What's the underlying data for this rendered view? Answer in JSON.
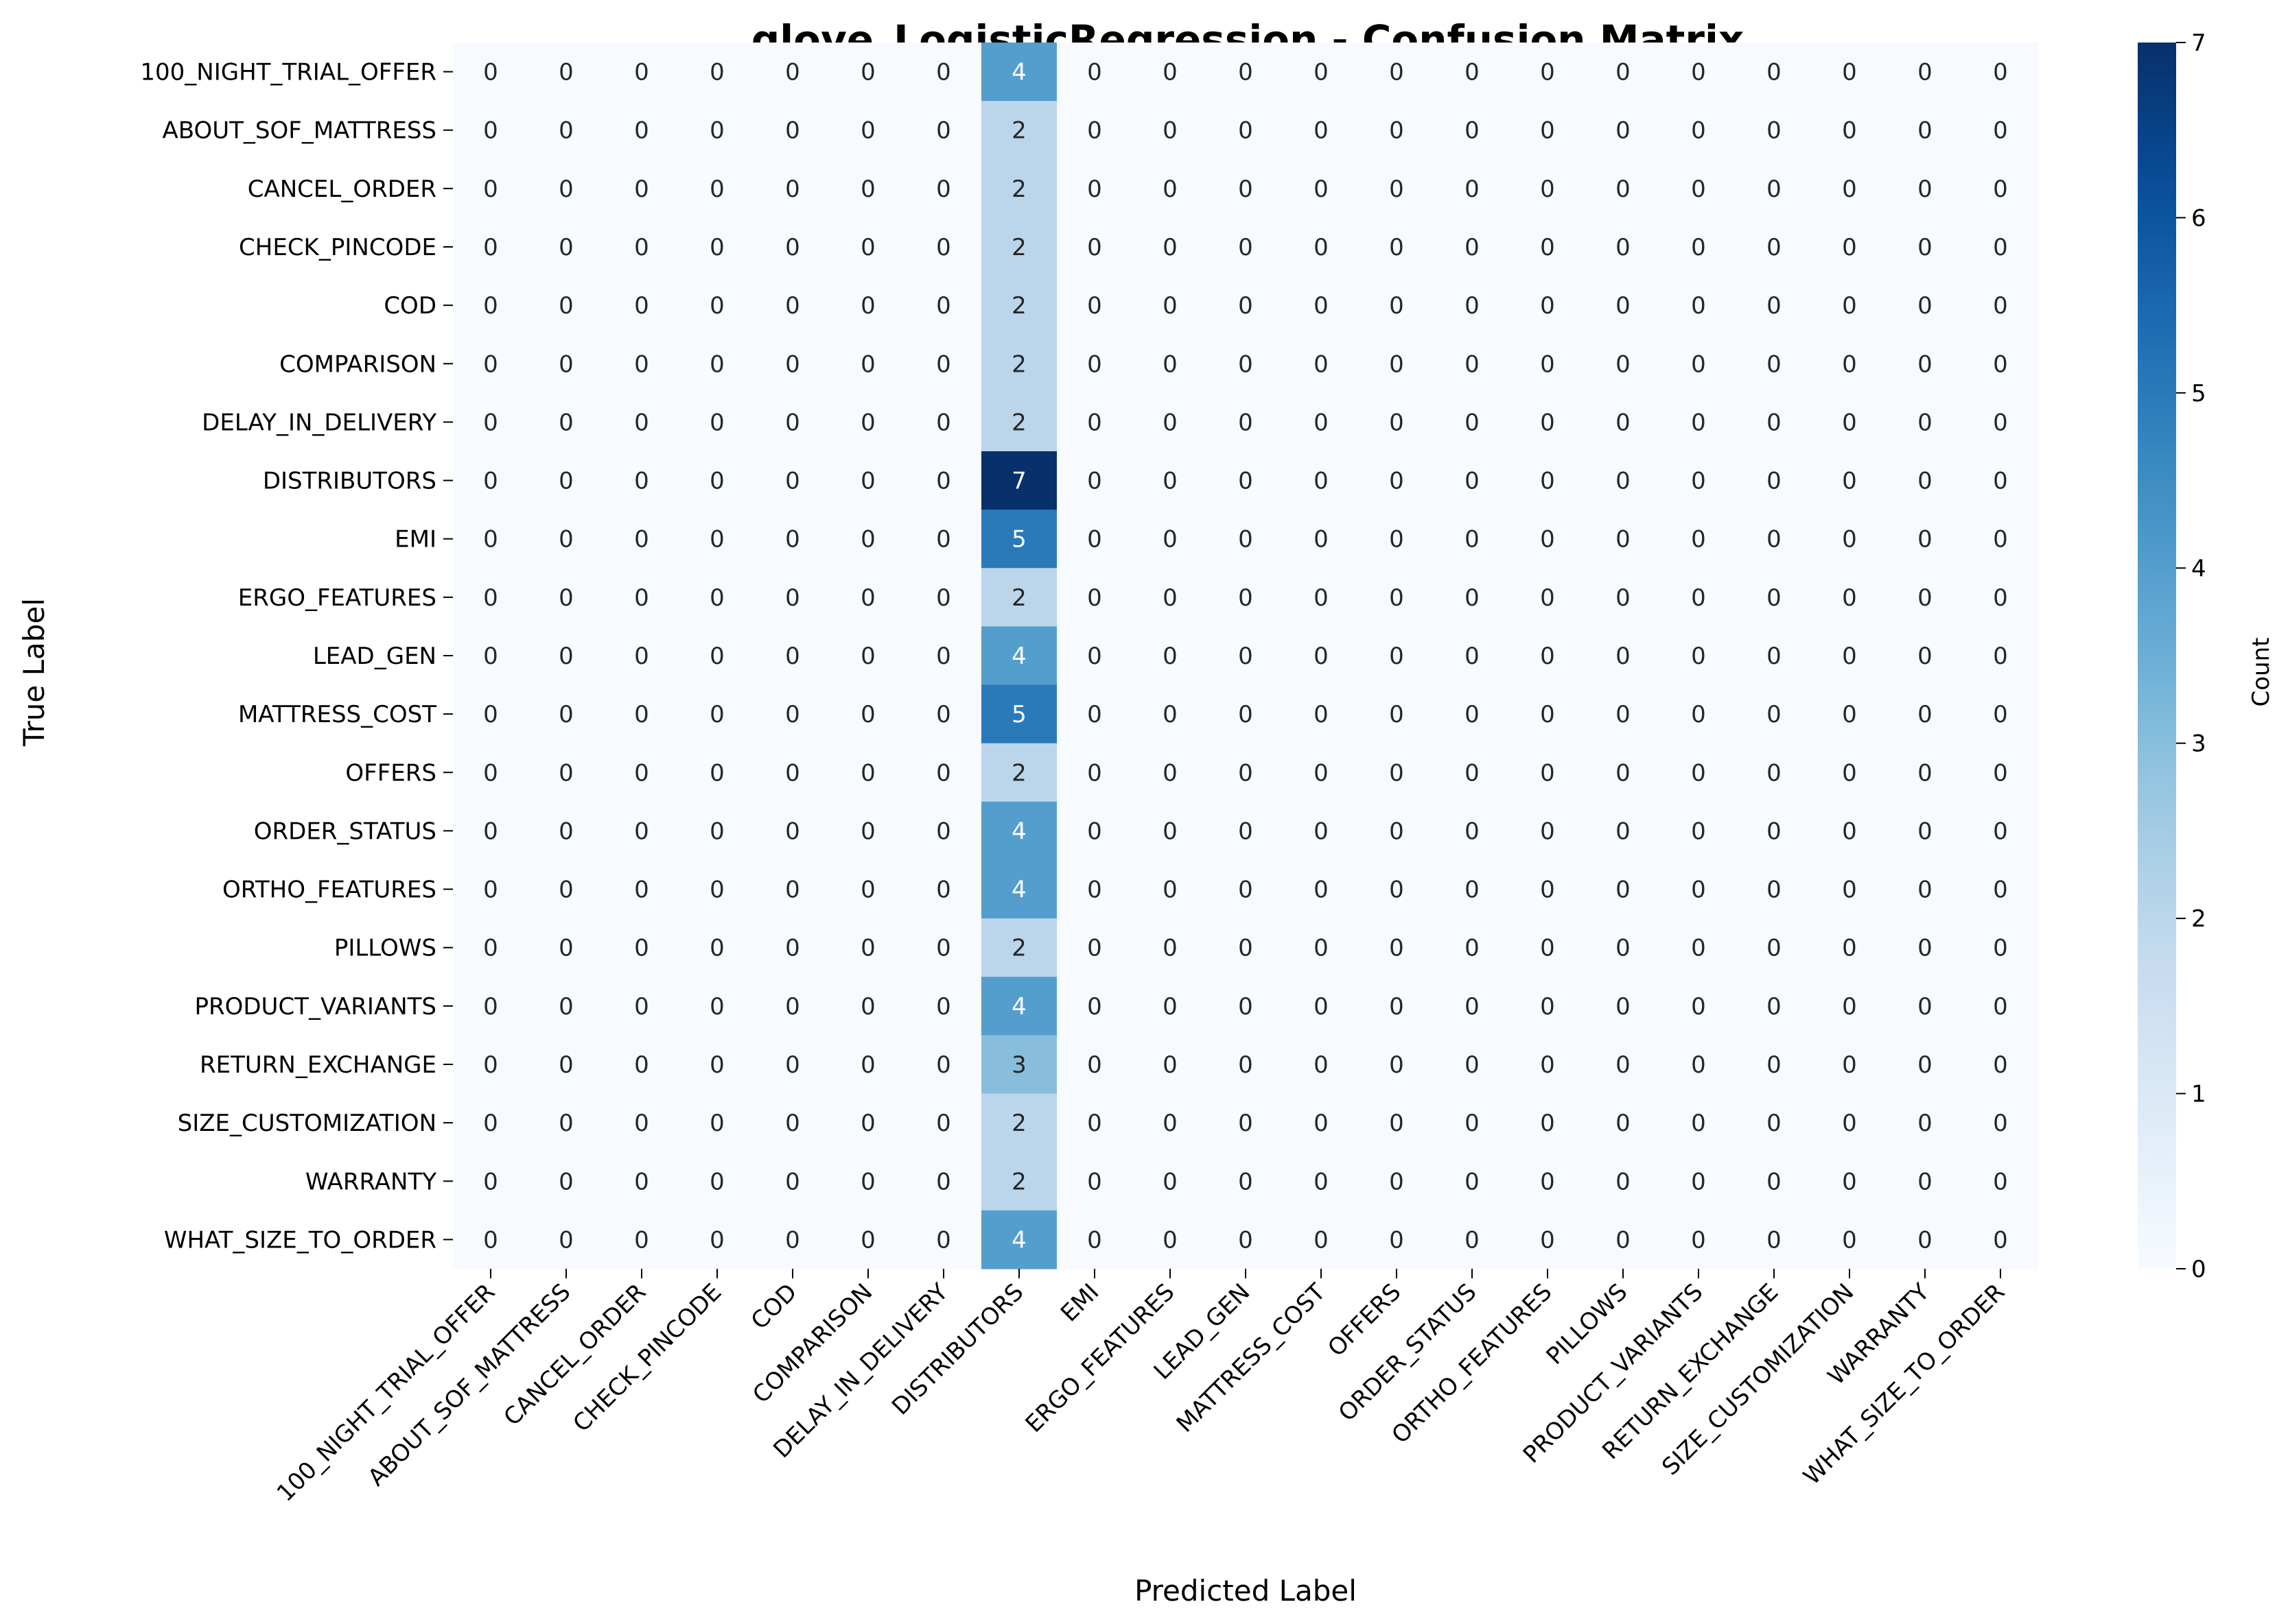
{
  "chart_data": {
    "type": "heatmap",
    "title": "glove_LogisticRegression - Confusion Matrix",
    "xlabel": "Predicted Label",
    "ylabel": "True Label",
    "colorbar_label": "Count",
    "colormap": "Blues",
    "vmin": 0,
    "vmax": 7,
    "colorbar_ticks": [
      0,
      1,
      2,
      3,
      4,
      5,
      6,
      7
    ],
    "x_categories": [
      "100_NIGHT_TRIAL_OFFER",
      "ABOUT_SOF_MATTRESS",
      "CANCEL_ORDER",
      "CHECK_PINCODE",
      "COD",
      "COMPARISON",
      "DELAY_IN_DELIVERY",
      "DISTRIBUTORS",
      "EMI",
      "ERGO_FEATURES",
      "LEAD_GEN",
      "MATTRESS_COST",
      "OFFERS",
      "ORDER_STATUS",
      "ORTHO_FEATURES",
      "PILLOWS",
      "PRODUCT_VARIANTS",
      "RETURN_EXCHANGE",
      "SIZE_CUSTOMIZATION",
      "WARRANTY",
      "WHAT_SIZE_TO_ORDER"
    ],
    "y_categories": [
      "100_NIGHT_TRIAL_OFFER",
      "ABOUT_SOF_MATTRESS",
      "CANCEL_ORDER",
      "CHECK_PINCODE",
      "COD",
      "COMPARISON",
      "DELAY_IN_DELIVERY",
      "DISTRIBUTORS",
      "EMI",
      "ERGO_FEATURES",
      "LEAD_GEN",
      "MATTRESS_COST",
      "OFFERS",
      "ORDER_STATUS",
      "ORTHO_FEATURES",
      "PILLOWS",
      "PRODUCT_VARIANTS",
      "RETURN_EXCHANGE",
      "SIZE_CUSTOMIZATION",
      "WARRANTY",
      "WHAT_SIZE_TO_ORDER"
    ],
    "values": [
      [
        0,
        0,
        0,
        0,
        0,
        0,
        0,
        4,
        0,
        0,
        0,
        0,
        0,
        0,
        0,
        0,
        0,
        0,
        0,
        0,
        0
      ],
      [
        0,
        0,
        0,
        0,
        0,
        0,
        0,
        2,
        0,
        0,
        0,
        0,
        0,
        0,
        0,
        0,
        0,
        0,
        0,
        0,
        0
      ],
      [
        0,
        0,
        0,
        0,
        0,
        0,
        0,
        2,
        0,
        0,
        0,
        0,
        0,
        0,
        0,
        0,
        0,
        0,
        0,
        0,
        0
      ],
      [
        0,
        0,
        0,
        0,
        0,
        0,
        0,
        2,
        0,
        0,
        0,
        0,
        0,
        0,
        0,
        0,
        0,
        0,
        0,
        0,
        0
      ],
      [
        0,
        0,
        0,
        0,
        0,
        0,
        0,
        2,
        0,
        0,
        0,
        0,
        0,
        0,
        0,
        0,
        0,
        0,
        0,
        0,
        0
      ],
      [
        0,
        0,
        0,
        0,
        0,
        0,
        0,
        2,
        0,
        0,
        0,
        0,
        0,
        0,
        0,
        0,
        0,
        0,
        0,
        0,
        0
      ],
      [
        0,
        0,
        0,
        0,
        0,
        0,
        0,
        2,
        0,
        0,
        0,
        0,
        0,
        0,
        0,
        0,
        0,
        0,
        0,
        0,
        0
      ],
      [
        0,
        0,
        0,
        0,
        0,
        0,
        0,
        7,
        0,
        0,
        0,
        0,
        0,
        0,
        0,
        0,
        0,
        0,
        0,
        0,
        0
      ],
      [
        0,
        0,
        0,
        0,
        0,
        0,
        0,
        5,
        0,
        0,
        0,
        0,
        0,
        0,
        0,
        0,
        0,
        0,
        0,
        0,
        0
      ],
      [
        0,
        0,
        0,
        0,
        0,
        0,
        0,
        2,
        0,
        0,
        0,
        0,
        0,
        0,
        0,
        0,
        0,
        0,
        0,
        0,
        0
      ],
      [
        0,
        0,
        0,
        0,
        0,
        0,
        0,
        4,
        0,
        0,
        0,
        0,
        0,
        0,
        0,
        0,
        0,
        0,
        0,
        0,
        0
      ],
      [
        0,
        0,
        0,
        0,
        0,
        0,
        0,
        5,
        0,
        0,
        0,
        0,
        0,
        0,
        0,
        0,
        0,
        0,
        0,
        0,
        0
      ],
      [
        0,
        0,
        0,
        0,
        0,
        0,
        0,
        2,
        0,
        0,
        0,
        0,
        0,
        0,
        0,
        0,
        0,
        0,
        0,
        0,
        0
      ],
      [
        0,
        0,
        0,
        0,
        0,
        0,
        0,
        4,
        0,
        0,
        0,
        0,
        0,
        0,
        0,
        0,
        0,
        0,
        0,
        0,
        0
      ],
      [
        0,
        0,
        0,
        0,
        0,
        0,
        0,
        4,
        0,
        0,
        0,
        0,
        0,
        0,
        0,
        0,
        0,
        0,
        0,
        0,
        0
      ],
      [
        0,
        0,
        0,
        0,
        0,
        0,
        0,
        2,
        0,
        0,
        0,
        0,
        0,
        0,
        0,
        0,
        0,
        0,
        0,
        0,
        0
      ],
      [
        0,
        0,
        0,
        0,
        0,
        0,
        0,
        4,
        0,
        0,
        0,
        0,
        0,
        0,
        0,
        0,
        0,
        0,
        0,
        0,
        0
      ],
      [
        0,
        0,
        0,
        0,
        0,
        0,
        0,
        3,
        0,
        0,
        0,
        0,
        0,
        0,
        0,
        0,
        0,
        0,
        0,
        0,
        0
      ],
      [
        0,
        0,
        0,
        0,
        0,
        0,
        0,
        2,
        0,
        0,
        0,
        0,
        0,
        0,
        0,
        0,
        0,
        0,
        0,
        0,
        0
      ],
      [
        0,
        0,
        0,
        0,
        0,
        0,
        0,
        2,
        0,
        0,
        0,
        0,
        0,
        0,
        0,
        0,
        0,
        0,
        0,
        0,
        0
      ],
      [
        0,
        0,
        0,
        0,
        0,
        0,
        0,
        4,
        0,
        0,
        0,
        0,
        0,
        0,
        0,
        0,
        0,
        0,
        0,
        0,
        0
      ]
    ],
    "grid": false,
    "legend": "colorbar-right"
  }
}
